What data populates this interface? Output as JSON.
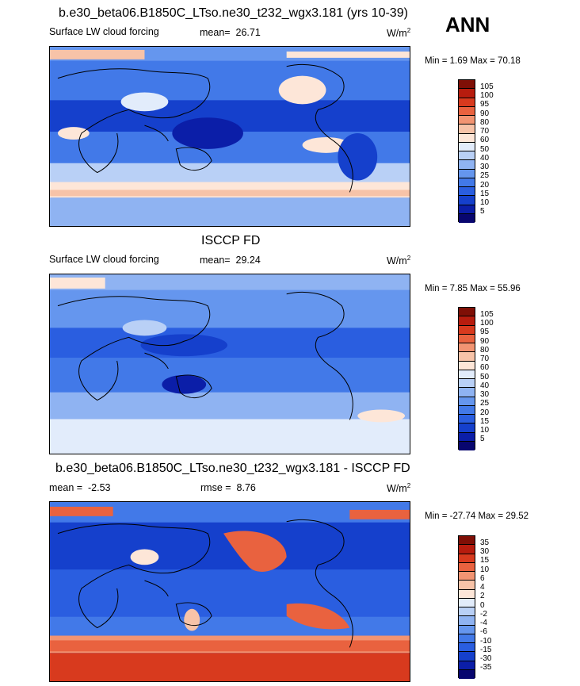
{
  "season": "ANN",
  "units_base": "W/m",
  "units_exp": "2",
  "panels": [
    {
      "title": "b.e30_beta06.B1850C_LTso.ne30_t232_wgx3.181 (yrs 10-39)",
      "field": "Surface LW cloud forcing",
      "stat1_label": "mean=",
      "stat1_value": "26.71",
      "stat2_label": "",
      "stat2_value": "",
      "minmax": "Min =   1.69 Max =  70.18"
    },
    {
      "title": "ISCCP FD",
      "field": "Surface LW cloud forcing",
      "stat1_label": "mean=",
      "stat1_value": "29.24",
      "stat2_label": "",
      "stat2_value": "",
      "minmax": "Min =   7.85 Max =  55.96"
    },
    {
      "title": "b.e30_beta06.B1850C_LTso.ne30_t232_wgx3.181 - ISCCP FD",
      "field": "",
      "stat1_label": "mean =",
      "stat1_value": "-2.53",
      "stat2_label": "rmse =",
      "stat2_value": "8.76",
      "minmax": "Min = -27.74 Max =  29.52"
    }
  ],
  "chart_data": [
    {
      "type": "heatmap",
      "title": "b.e30_beta06.B1850C_LTso.ne30_t232_wgx3.181 (yrs 10-39)",
      "field": "Surface LW cloud forcing",
      "units": "W/m2",
      "mean": 26.71,
      "min": 1.69,
      "max": 70.18,
      "levels": [
        5,
        10,
        15,
        20,
        25,
        30,
        40,
        50,
        60,
        70,
        80,
        90,
        95,
        100,
        105
      ],
      "colorbar": [
        "#08066f",
        "#0b1ea8",
        "#1540cc",
        "#2a5ee0",
        "#4279e8",
        "#6596ee",
        "#8fb3f2",
        "#b9d0f6",
        "#e2ecfb",
        "#fde6d8",
        "#f7c3a8",
        "#f29472",
        "#e9623f",
        "#d83a1e",
        "#b71c0e",
        "#7f0f06"
      ]
    },
    {
      "type": "heatmap",
      "title": "ISCCP FD",
      "field": "Surface LW cloud forcing",
      "units": "W/m2",
      "mean": 29.24,
      "min": 7.85,
      "max": 55.96,
      "levels": [
        5,
        10,
        15,
        20,
        25,
        30,
        40,
        50,
        60,
        70,
        80,
        90,
        95,
        100,
        105
      ],
      "colorbar": [
        "#08066f",
        "#0b1ea8",
        "#1540cc",
        "#2a5ee0",
        "#4279e8",
        "#6596ee",
        "#8fb3f2",
        "#b9d0f6",
        "#e2ecfb",
        "#fde6d8",
        "#f7c3a8",
        "#f29472",
        "#e9623f",
        "#d83a1e",
        "#b71c0e",
        "#7f0f06"
      ]
    },
    {
      "type": "heatmap",
      "title": "b.e30_beta06.B1850C_LTso.ne30_t232_wgx3.181 - ISCCP FD",
      "units": "W/m2",
      "mean": -2.53,
      "rmse": 8.76,
      "min": -27.74,
      "max": 29.52,
      "levels": [
        -35,
        -30,
        -15,
        -10,
        -6,
        -4,
        -2,
        0,
        2,
        4,
        6,
        10,
        15,
        30,
        35
      ],
      "colorbar": [
        "#08066f",
        "#0b1ea8",
        "#1540cc",
        "#2a5ee0",
        "#4279e8",
        "#6596ee",
        "#8fb3f2",
        "#b9d0f6",
        "#e2ecfb",
        "#fde6d8",
        "#f7c3a8",
        "#f29472",
        "#e9623f",
        "#d83a1e",
        "#b71c0e",
        "#7f0f06"
      ]
    }
  ]
}
